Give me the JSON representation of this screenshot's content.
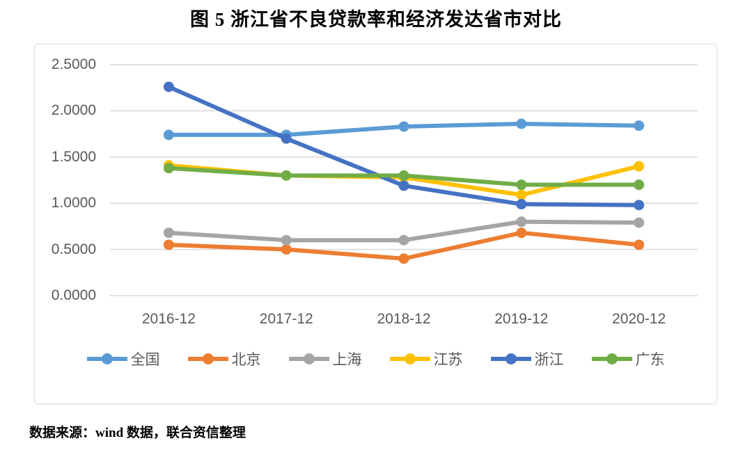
{
  "title": "图 5 浙江省不良贷款率和经济发达省市对比",
  "source_note": "数据来源：wind 数据，联合资信整理",
  "chart_data": {
    "type": "line",
    "title": "图 5 浙江省不良贷款率和经济发达省市对比",
    "categories": [
      "2016-12",
      "2017-12",
      "2018-12",
      "2019-12",
      "2020-12"
    ],
    "series": [
      {
        "name": "全国",
        "color": "#5B9BD5",
        "values": [
          1.74,
          1.74,
          1.83,
          1.86,
          1.84
        ]
      },
      {
        "name": "北京",
        "color": "#ED7D31",
        "values": [
          0.55,
          0.5,
          0.4,
          0.68,
          0.55
        ]
      },
      {
        "name": "上海",
        "color": "#A5A5A5",
        "values": [
          0.68,
          0.6,
          0.6,
          0.8,
          0.79
        ]
      },
      {
        "name": "江苏",
        "color": "#FFC000",
        "values": [
          1.41,
          1.3,
          1.28,
          1.09,
          1.4
        ]
      },
      {
        "name": "浙江",
        "color": "#4472C4",
        "values": [
          2.26,
          1.7,
          1.19,
          0.99,
          0.98
        ]
      },
      {
        "name": "广东",
        "color": "#70AD47",
        "values": [
          1.38,
          1.3,
          1.3,
          1.2,
          1.2
        ]
      }
    ],
    "ylim": [
      0,
      2.5
    ],
    "y_ticks": [
      {
        "label": "2.5000",
        "value": 2.5
      },
      {
        "label": "2.0000",
        "value": 2.0
      },
      {
        "label": "1.5000",
        "value": 1.5
      },
      {
        "label": "1.0000",
        "value": 1.0
      },
      {
        "label": "0.5000",
        "value": 0.5
      },
      {
        "label": "0.0000",
        "value": 0.0
      }
    ],
    "grid": true,
    "legend_position": "bottom",
    "gridline_color": "#D9D9D9",
    "axis_label_color": "#595959"
  }
}
